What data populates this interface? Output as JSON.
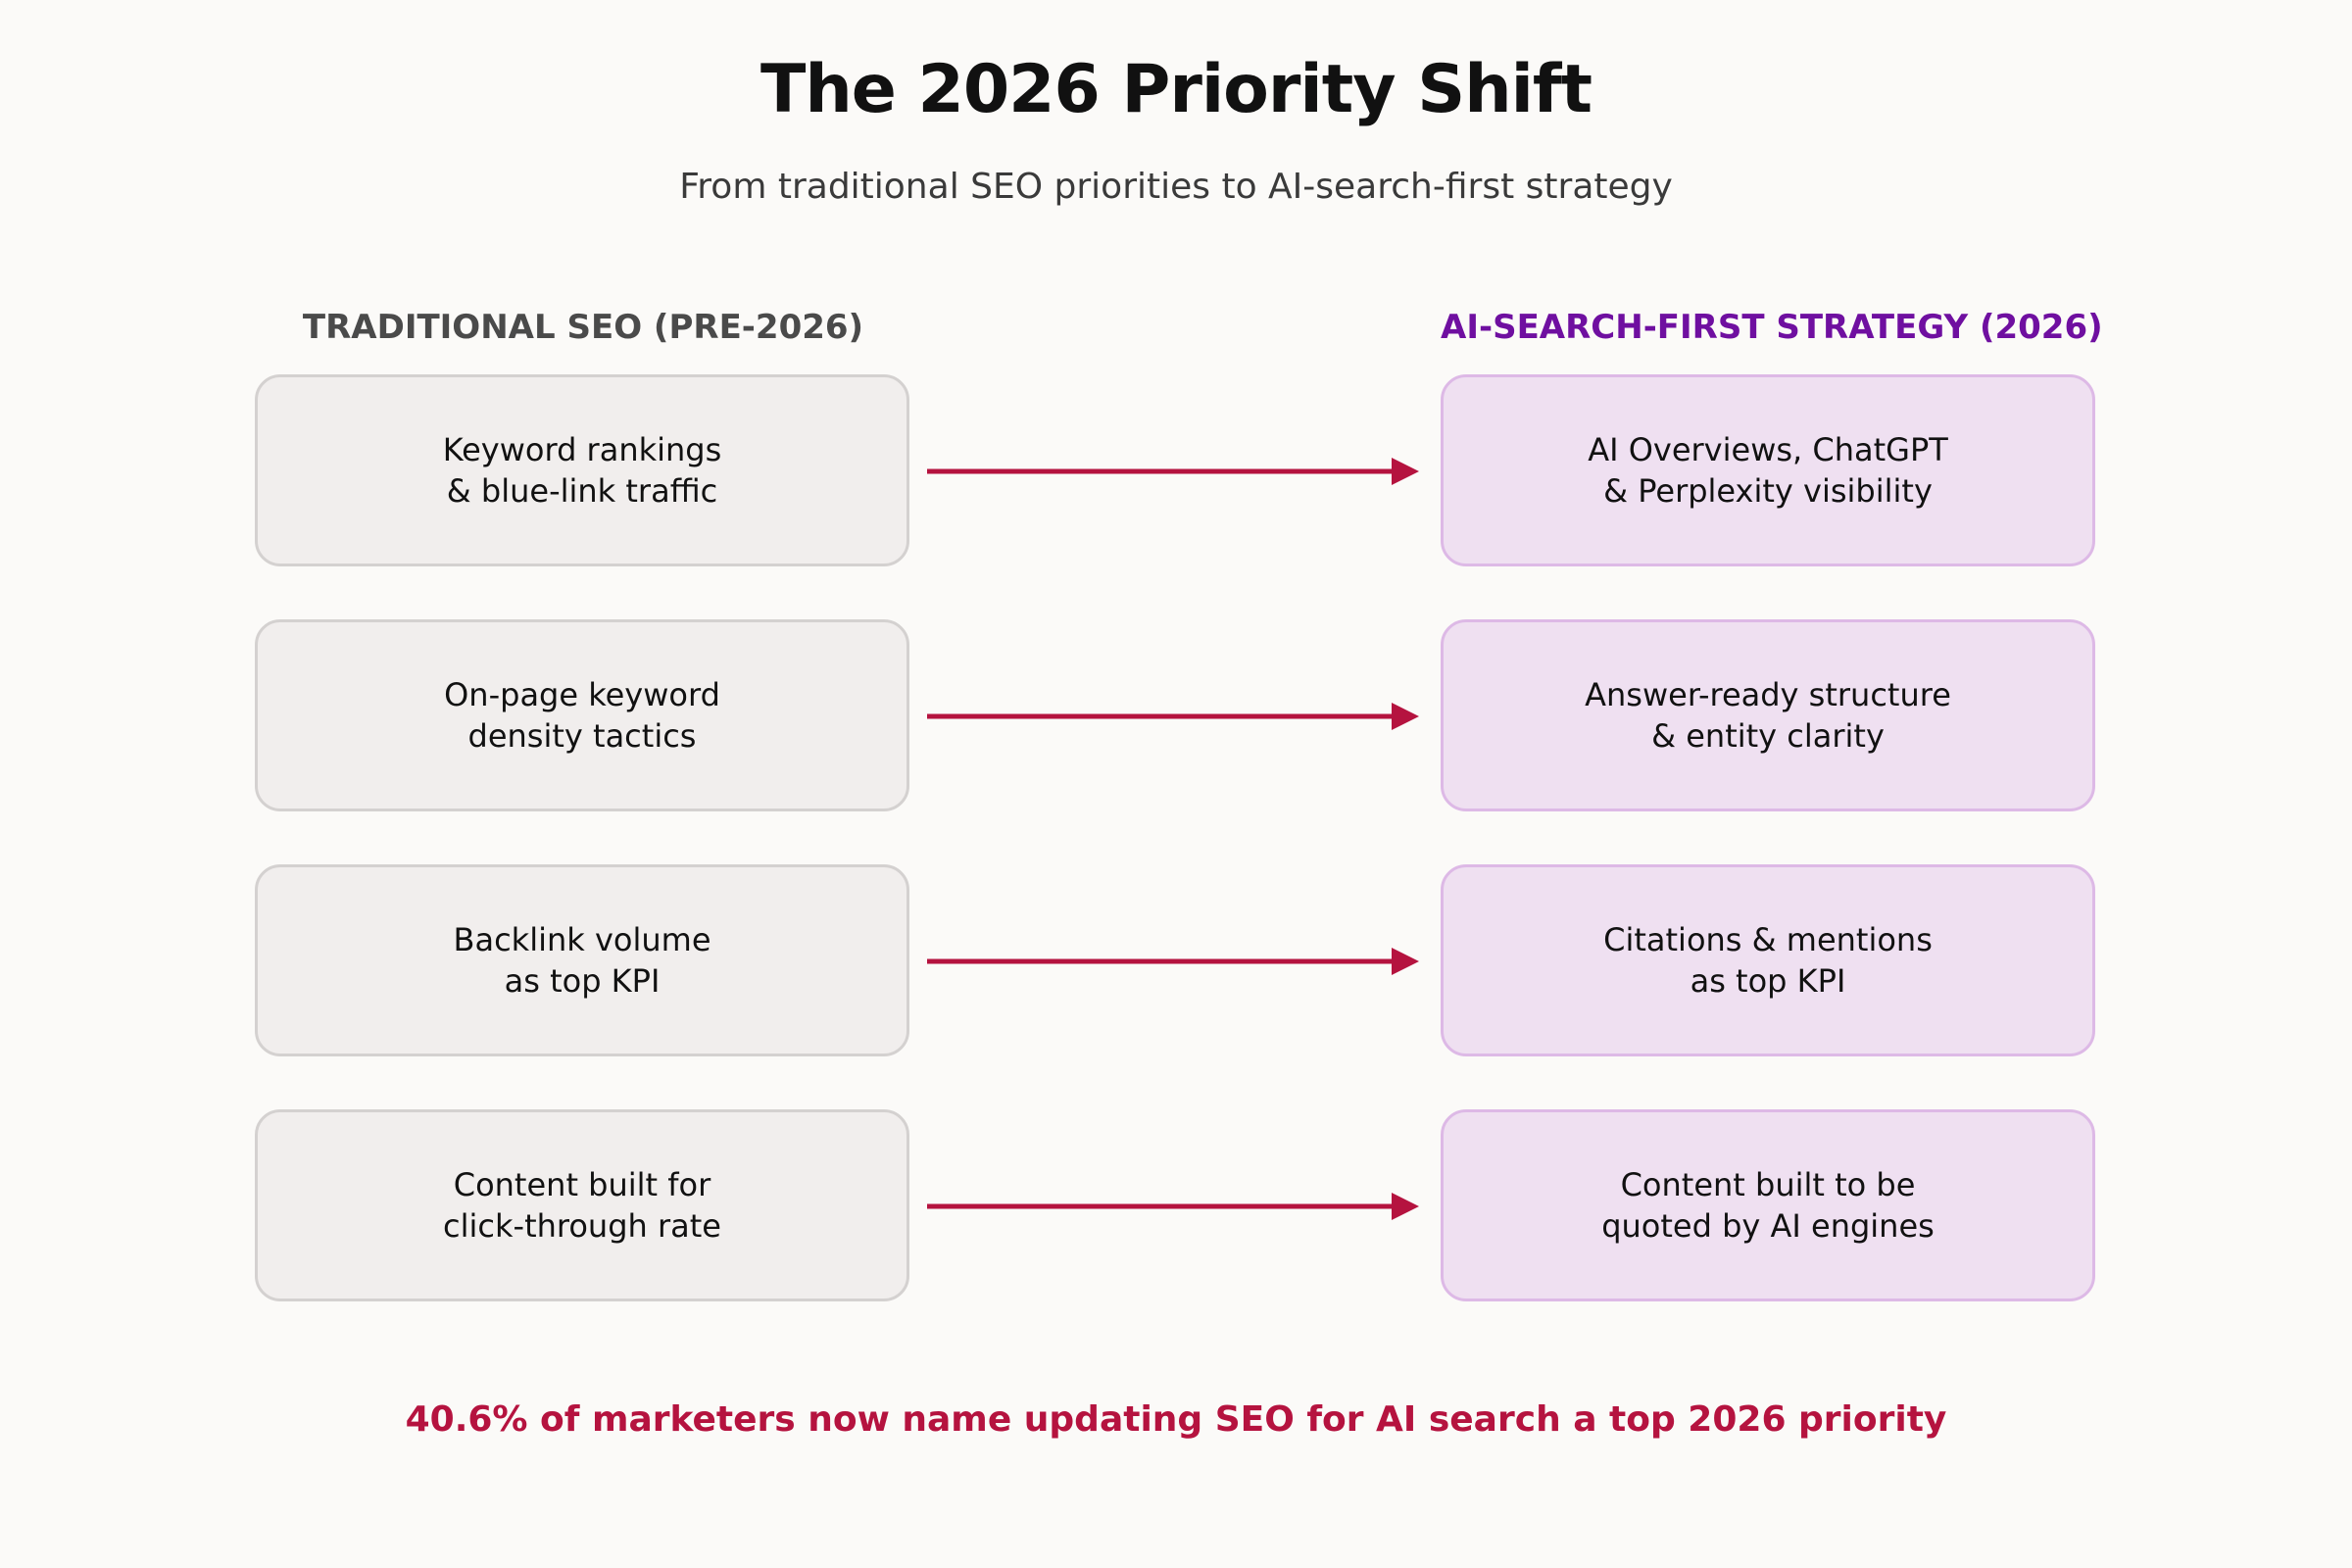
{
  "title": "The 2026 Priority Shift",
  "subtitle": "From traditional SEO priorities to AI-search-first strategy",
  "columns": {
    "left_heading": "TRADITIONAL SEO (PRE-2026)",
    "right_heading": "AI-SEARCH-FIRST STRATEGY (2026)"
  },
  "rows": [
    {
      "from": "Keyword rankings\n& blue-link traffic",
      "to": "AI Overviews, ChatGPT\n& Perplexity visibility"
    },
    {
      "from": "On-page keyword\ndensity tactics",
      "to": "Answer-ready structure\n& entity clarity"
    },
    {
      "from": "Backlink volume\nas top KPI",
      "to": "Citations & mentions\nas top KPI"
    },
    {
      "from": "Content built for\nclick-through rate",
      "to": "Content built to be\nquoted by AI engines"
    }
  ],
  "footer": "40.6% of marketers now name updating SEO for AI search a top 2026 priority",
  "colors": {
    "arrow": "#b5133f",
    "right_heading": "#6f0fa0",
    "left_heading": "#4a4a4a",
    "old_box_fill": "#f1eeed",
    "new_box_fill": "#efe0f1",
    "footer": "#b5133f"
  }
}
